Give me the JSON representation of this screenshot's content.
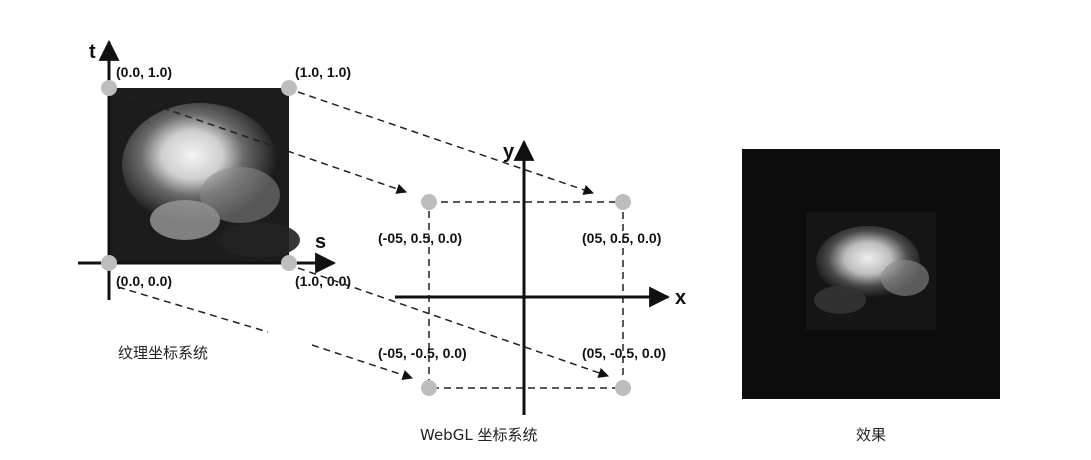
{
  "texture": {
    "axis_t": "t",
    "axis_s": "s",
    "coords": {
      "top_left": "(0.0, 1.0)",
      "top_right": "(1.0, 1.0)",
      "bottom_left": "(0.0, 0.0)",
      "bottom_right": "(1.0, 0.0)"
    },
    "caption": "纹理坐标系统"
  },
  "webgl": {
    "axis_x": "x",
    "axis_y": "y",
    "coords": {
      "top_left": "(-05, 0.5, 0.0)",
      "top_right": "(05, 0.5, 0.0)",
      "bottom_left": "(-05, -0.5, 0.0)",
      "bottom_right": "(05, -0.5, 0.0)"
    },
    "caption": "WebGL 坐标系统"
  },
  "result": {
    "caption": "效果"
  }
}
